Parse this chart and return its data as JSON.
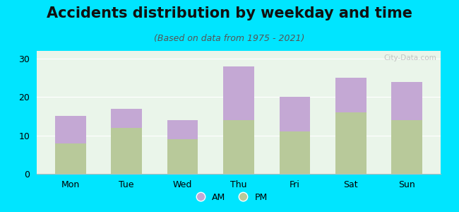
{
  "title": "Accidents distribution by weekday and time",
  "subtitle": "(Based on data from 1975 - 2021)",
  "categories": [
    "Mon",
    "Tue",
    "Wed",
    "Thu",
    "Fri",
    "Sat",
    "Sun"
  ],
  "pm_values": [
    8,
    12,
    9,
    14,
    11,
    16,
    14
  ],
  "am_values": [
    7,
    5,
    5,
    14,
    9,
    9,
    10
  ],
  "am_color": "#c4a8d4",
  "pm_color": "#b8c99a",
  "background_color": "#00e5ff",
  "plot_bg_color": "#eaf5ea",
  "ylim": [
    0,
    32
  ],
  "yticks": [
    0,
    10,
    20,
    30
  ],
  "bar_width": 0.55,
  "title_fontsize": 15,
  "subtitle_fontsize": 9,
  "tick_fontsize": 9,
  "legend_fontsize": 9,
  "watermark_text": "City-Data.com"
}
